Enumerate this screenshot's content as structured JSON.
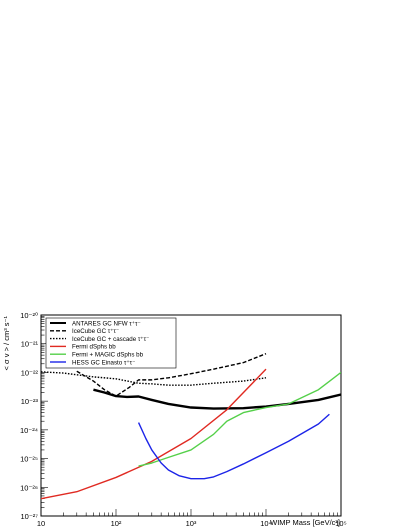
{
  "chart_data": {
    "type": "line",
    "title": "",
    "xlabel": "WIMP Mass [GeV/c²]",
    "ylabel": "< σ v > / cm³ s⁻¹",
    "xscale": "log",
    "yscale": "log",
    "xlim": [
      10,
      100000
    ],
    "ylim": [
      1e-27,
      1e-20
    ],
    "x_tick_labels": [
      "10",
      "10²",
      "10³",
      "10⁴",
      "10⁵"
    ],
    "y_tick_labels": [
      "10⁻²⁷",
      "10⁻²⁶",
      "10⁻²⁵",
      "10⁻²⁴",
      "10⁻²³",
      "10⁻²²",
      "10⁻²¹",
      "10⁻²⁰"
    ],
    "grid": false,
    "legend_position": "top-left",
    "series": [
      {
        "name": "ANTARES GC NFW τ⁺τ⁻",
        "color": "#000000",
        "width": 2.4,
        "dash": "",
        "x": [
          50,
          70,
          100,
          140,
          200,
          300,
          500,
          1000,
          2000,
          5000,
          10000,
          20000,
          50000,
          100000
        ],
        "y": [
          2.5e-23,
          2e-23,
          1.5e-23,
          1.4e-23,
          1.45e-23,
          1.1e-23,
          8e-24,
          6e-24,
          5.5e-24,
          5.7e-24,
          6.5e-24,
          8e-24,
          1.1e-23,
          1.7e-23
        ]
      },
      {
        "name": "IceCube GC τ⁺τ⁻",
        "color": "#000000",
        "width": 1.4,
        "dash": "4,2",
        "x": [
          30,
          50,
          70,
          100,
          150,
          200,
          300,
          500,
          1000,
          2000,
          5000,
          10000
        ],
        "y": [
          1.1e-22,
          5e-23,
          2.5e-23,
          1.5e-23,
          3e-23,
          5.5e-23,
          5.5e-23,
          6.5e-23,
          9e-23,
          1.3e-22,
          2.2e-22,
          4.5e-22
        ]
      },
      {
        "name": "IceCube GC + cascade τ⁺τ⁻",
        "color": "#000000",
        "width": 1.4,
        "dash": "1.5,1.5",
        "x": [
          10,
          20,
          50,
          100,
          200,
          300,
          500,
          1000,
          2000,
          5000,
          10000
        ],
        "y": [
          1.05e-22,
          9.5e-23,
          7e-23,
          6e-23,
          4.2e-23,
          4e-23,
          3.6e-23,
          3.6e-23,
          4.2e-23,
          5e-23,
          6.5e-23
        ]
      },
      {
        "name": "Fermi dSphs bb",
        "color": "#e02a22",
        "width": 1.4,
        "dash": "",
        "x": [
          10,
          30,
          100,
          300,
          1000,
          3000,
          10000
        ],
        "y": [
          4e-27,
          7e-27,
          2.2e-26,
          8e-26,
          5e-25,
          5e-24,
          1.3e-22
        ]
      },
      {
        "name": "Fermi + MAGIC dSphs bb",
        "color": "#55d04a",
        "width": 1.4,
        "dash": "",
        "x": [
          200,
          300,
          500,
          1000,
          2000,
          3000,
          5000,
          10000,
          20000,
          50000,
          100000
        ],
        "y": [
          5.5e-26,
          7e-26,
          1.1e-25,
          2e-25,
          7e-25,
          2e-24,
          4e-24,
          6e-24,
          8e-24,
          2.5e-23,
          1e-22
        ]
      },
      {
        "name": "HESS GC Einasto τ⁺τ⁻",
        "color": "#1c24e8",
        "width": 1.4,
        "dash": "",
        "x": [
          200,
          250,
          300,
          400,
          500,
          700,
          1000,
          1500,
          2000,
          3000,
          5000,
          10000,
          20000,
          50000,
          70000
        ],
        "y": [
          1.8e-24,
          5e-25,
          2e-25,
          7e-26,
          4e-26,
          2.5e-26,
          2e-26,
          2e-26,
          2.3e-26,
          3.5e-26,
          6.5e-26,
          1.6e-25,
          4e-25,
          1.6e-24,
          3.5e-24
        ]
      }
    ]
  }
}
